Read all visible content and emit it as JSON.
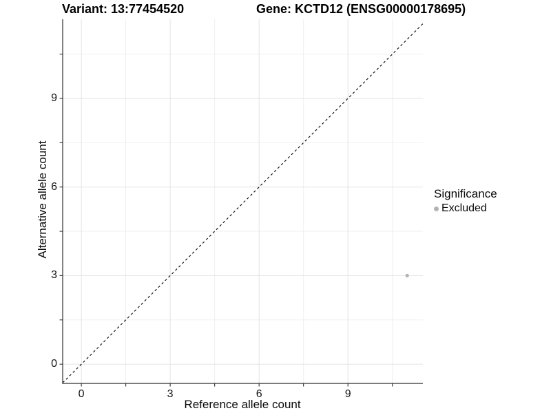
{
  "header": {
    "variant_title": "Variant: 13:77454520",
    "gene_title": "Gene: KCTD12 (ENSG00000178695)"
  },
  "chart_data": {
    "type": "scatter",
    "title": "Variant: 13:77454520  |  Gene: KCTD12 (ENSG00000178695)",
    "xlabel": "Reference allele count",
    "ylabel": "Alternative allele count",
    "xlim": [
      -0.63,
      11.53
    ],
    "ylim": [
      -0.65,
      11.68
    ],
    "x_ticks": [
      0,
      3,
      6,
      9
    ],
    "y_ticks": [
      0,
      3,
      6,
      9
    ],
    "x_minor_ticks": [
      1.5,
      4.5,
      7.5,
      10.5
    ],
    "y_minor_ticks": [
      1.5,
      4.5,
      7.5,
      10.5
    ],
    "grid": "major and minor, light gray, white background",
    "identity_line": {
      "slope": 1,
      "intercept": 0,
      "style": "dashed",
      "color": "#000000"
    },
    "series": [
      {
        "name": "Excluded",
        "color": "#b3b3b3",
        "points": [
          {
            "x": 11,
            "y": 3
          }
        ]
      }
    ],
    "legend": {
      "title": "Significance",
      "position": "right",
      "entries": [
        {
          "label": "Excluded",
          "color": "#b3b3b3"
        }
      ]
    },
    "colors": {
      "axis_line": "#2f2f2f",
      "tick_mark": "#2f2f2f",
      "grid_major": "#e3e3e3",
      "grid_minor": "#efefef",
      "point": "#b3b3b3",
      "dashed_line": "#000000"
    }
  }
}
